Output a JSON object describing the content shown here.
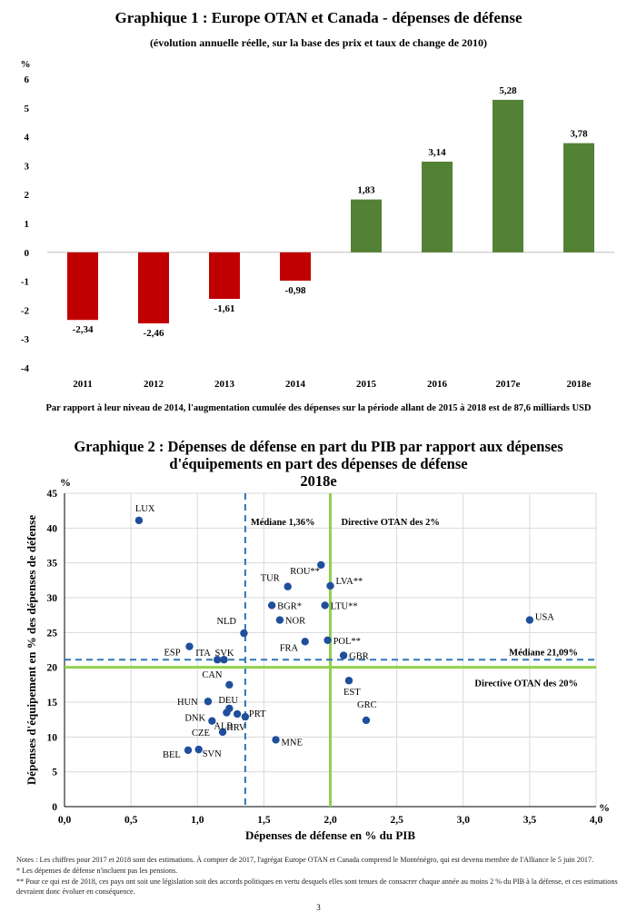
{
  "chart1": {
    "title": "Graphique 1 : Europe OTAN et Canada - dépenses de défense",
    "subtitle": "(évolution annuelle réelle, sur la base des prix et taux de change de 2010)",
    "unit": "%",
    "note": "Par rapport à leur niveau de 2014, l'augmentation cumulée des dépenses sur la période allant de 2015 à 2018 est de 87,6 milliards USD"
  },
  "chart2": {
    "title_line1": "Graphique 2 : Dépenses de défense en part du PIB par rapport aux dépenses",
    "title_line2": "d'équipements en part des dépenses de défense",
    "title_line3": "2018e",
    "y_unit": "%",
    "x_unit": "%"
  },
  "footnotes": {
    "line1": "Notes : Les chiffres pour 2017 et 2018 sont des estimations. À compter de 2017, l'agrégat Europe OTAN et Canada comprend le Monténégro, qui est devenu membre de l'Alliance le 5 juin 2017.",
    "line2": "* Les dépenses de défense n'incluent pas les pensions.",
    "line3": "** Pour ce qui est de 2018, ces pays ont soit une législation soit des accords politiques en vertu desquels elles sont tenues de consacrer chaque année au moins 2 % du PIB à la défense, et ces estimations devraient donc évoluer en conséquence."
  },
  "page_number": "3",
  "chart_data": [
    {
      "type": "bar",
      "categories": [
        "2011",
        "2012",
        "2013",
        "2014",
        "2015",
        "2016",
        "2017e",
        "2018e"
      ],
      "values": [
        -2.34,
        -2.46,
        -1.61,
        -0.98,
        1.83,
        3.14,
        5.28,
        3.78
      ],
      "value_labels": [
        "-2,34",
        "-2,46",
        "-1,61",
        "-0,98",
        "1,83",
        "3,14",
        "5,28",
        "3,78"
      ],
      "ylim": [
        -4,
        6
      ],
      "yticks": [
        "-4",
        "-3",
        "-2",
        "-1",
        "0",
        "1",
        "2",
        "3",
        "4",
        "5",
        "6"
      ],
      "colors": {
        "negative": "#c00000",
        "positive": "#538135"
      },
      "grid": false
    },
    {
      "type": "scatter",
      "xlabel": "Dépenses de défense en % du PIB",
      "ylabel": "Dépenses d'équipement en % des dépenses de défense",
      "xlim": [
        0,
        4
      ],
      "ylim": [
        0,
        45
      ],
      "xticks": [
        "0,0",
        "0,5",
        "1,0",
        "1,5",
        "2,0",
        "2,5",
        "3,0",
        "3,5",
        "4,0"
      ],
      "yticks": [
        "0",
        "5",
        "10",
        "15",
        "20",
        "25",
        "30",
        "35",
        "40",
        "45"
      ],
      "grid": true,
      "point_color": "#1f4e9c",
      "points": [
        {
          "label": "LUX",
          "x": 0.56,
          "y": 41.1
        },
        {
          "label": "ROU**",
          "x": 1.93,
          "y": 34.7
        },
        {
          "label": "TUR",
          "x": 1.68,
          "y": 31.6
        },
        {
          "label": "LVA**",
          "x": 2.0,
          "y": 31.7
        },
        {
          "label": "BGR*",
          "x": 1.56,
          "y": 28.9
        },
        {
          "label": "LTU**",
          "x": 1.96,
          "y": 28.9
        },
        {
          "label": "NOR",
          "x": 1.62,
          "y": 26.8
        },
        {
          "label": "USA",
          "x": 3.5,
          "y": 26.8
        },
        {
          "label": "NLD",
          "x": 1.35,
          "y": 24.9
        },
        {
          "label": "FRA",
          "x": 1.81,
          "y": 23.7
        },
        {
          "label": "POL**",
          "x": 1.98,
          "y": 23.9
        },
        {
          "label": "ESP",
          "x": 0.94,
          "y": 23.0
        },
        {
          "label": "GBR",
          "x": 2.1,
          "y": 21.7
        },
        {
          "label": "ITA",
          "x": 1.15,
          "y": 21.1
        },
        {
          "label": "SVK",
          "x": 1.2,
          "y": 21.1
        },
        {
          "label": "EST",
          "x": 2.14,
          "y": 18.1
        },
        {
          "label": "CAN",
          "x": 1.24,
          "y": 17.5
        },
        {
          "label": "HUN",
          "x": 1.08,
          "y": 15.1
        },
        {
          "label": "DEU",
          "x": 1.24,
          "y": 14.1
        },
        {
          "label": "DNK",
          "x": 1.11,
          "y": 12.3
        },
        {
          "label": "PRT",
          "x": 1.36,
          "y": 12.9
        },
        {
          "label": "GRC",
          "x": 2.27,
          "y": 12.4
        },
        {
          "label": "CZE",
          "x": 1.19,
          "y": 10.7
        },
        {
          "label": "ALB",
          "x": 1.22,
          "y": 13.5
        },
        {
          "label": "HRV",
          "x": 1.3,
          "y": 13.3
        },
        {
          "label": "MNE",
          "x": 1.59,
          "y": 9.6
        },
        {
          "label": "BEL",
          "x": 0.93,
          "y": 8.1
        },
        {
          "label": "SVN",
          "x": 1.01,
          "y": 8.2
        }
      ],
      "reference_lines": [
        {
          "label": "Médiane 1,36%",
          "axis": "x",
          "value": 1.36,
          "style": "dashed",
          "color": "#2e75b6"
        },
        {
          "label": "Directive OTAN des 2%",
          "axis": "x",
          "value": 2.0,
          "style": "solid",
          "color": "#92d050"
        },
        {
          "label": "Médiane 21,09%",
          "axis": "y",
          "value": 21.09,
          "style": "dashed",
          "color": "#2e75b6"
        },
        {
          "label": "Directive OTAN des 20%",
          "axis": "y",
          "value": 20,
          "style": "solid",
          "color": "#92d050"
        }
      ]
    }
  ]
}
